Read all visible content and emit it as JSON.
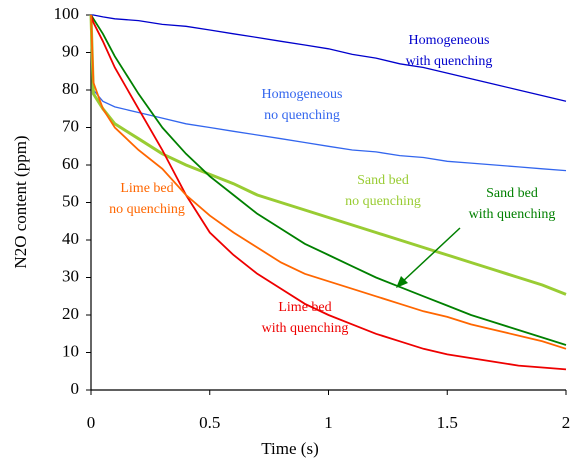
{
  "chart_data": {
    "type": "line",
    "xlabel": "Time (s)",
    "ylabel": "N2O content (ppm)",
    "x": [
      0,
      0.01,
      0.05,
      0.1,
      0.2,
      0.3,
      0.4,
      0.5,
      0.6,
      0.7,
      0.8,
      0.9,
      1.0,
      1.1,
      1.2,
      1.3,
      1.4,
      1.5,
      1.6,
      1.7,
      1.8,
      1.9,
      2.0
    ],
    "xlim": [
      0,
      2
    ],
    "xticks": [
      0,
      0.5,
      1,
      1.5,
      2
    ],
    "ylim": [
      0,
      100
    ],
    "yticks": [
      0,
      10,
      20,
      30,
      40,
      50,
      60,
      70,
      80,
      90,
      100
    ],
    "series": [
      {
        "label": [
          "Homogeneous",
          "with quenching"
        ],
        "color": "#0000cc",
        "values": [
          100,
          100,
          99.5,
          99,
          98.5,
          97.5,
          97,
          96,
          95,
          94,
          93,
          92,
          91,
          89.5,
          88.5,
          87,
          86,
          84.5,
          83,
          81.5,
          80,
          78.5,
          77
        ]
      },
      {
        "label": [
          "Homogeneous",
          "no quenching"
        ],
        "color": "#3366ee",
        "values": [
          100,
          80,
          77,
          75.5,
          74,
          72.5,
          71,
          70,
          69,
          68,
          67,
          66,
          65,
          64,
          63.5,
          62.5,
          62,
          61,
          60.5,
          60,
          59.5,
          59,
          58.5
        ]
      },
      {
        "label": [
          "Sand bed",
          "no quenching"
        ],
        "color": "#99cc33",
        "values": [
          100,
          79,
          75,
          71,
          67,
          63,
          60,
          57.5,
          55,
          52,
          50,
          48,
          46,
          44,
          42,
          40,
          38,
          36,
          34,
          32,
          30,
          28,
          25.5
        ]
      },
      {
        "label": [
          "Sand bed",
          "with quenching"
        ],
        "color": "#008000",
        "values": [
          100,
          99,
          95,
          89,
          79,
          70,
          63,
          57,
          52,
          47,
          43,
          39,
          36,
          33,
          30,
          27.5,
          25,
          22.5,
          20,
          18,
          16,
          14,
          12
        ]
      },
      {
        "label": [
          "Lime bed",
          "with quenching"
        ],
        "color": "#ee0000",
        "values": [
          100,
          98,
          93,
          86,
          75,
          64,
          52,
          42,
          36,
          31,
          27,
          23,
          20,
          17.5,
          15,
          13,
          11,
          9.5,
          8.5,
          7.5,
          6.5,
          6,
          5.5
        ]
      },
      {
        "label": [
          "Lime bed",
          "no quenching"
        ],
        "color": "#ff6600",
        "values": [
          100,
          82,
          75,
          70,
          64,
          59,
          52,
          46.5,
          42,
          38,
          34,
          31,
          29,
          27,
          25,
          23,
          21,
          19.5,
          17.5,
          16,
          14.5,
          13,
          11
        ]
      }
    ]
  }
}
